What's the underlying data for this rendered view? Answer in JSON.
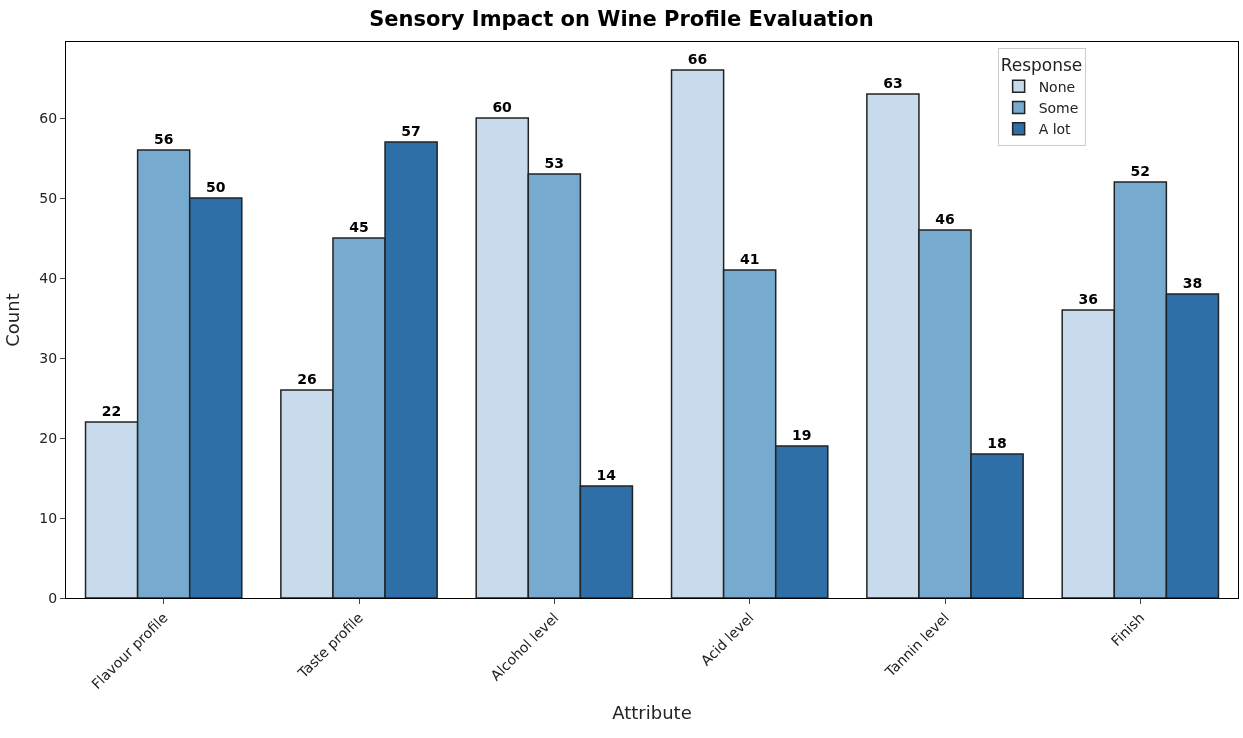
{
  "chart_data": {
    "type": "bar",
    "title": "Sensory Impact on Wine Profile Evaluation",
    "xlabel": "Attribute",
    "ylabel": "Count",
    "legend_title": "Response",
    "categories": [
      "Flavour profile",
      "Taste profile",
      "Alcohol level",
      "Acid level",
      "Tannin level",
      "Finish"
    ],
    "series": [
      {
        "name": "None",
        "color": "#c8dbed",
        "values": [
          22,
          26,
          60,
          66,
          63,
          36
        ]
      },
      {
        "name": "Some",
        "color": "#77aacf",
        "values": [
          56,
          45,
          53,
          41,
          46,
          52
        ]
      },
      {
        "name": "A lot",
        "color": "#2f6fa8",
        "values": [
          50,
          57,
          14,
          19,
          18,
          38
        ]
      }
    ],
    "ylim": [
      0,
      69.5
    ],
    "yticks": [
      0,
      10,
      20,
      30,
      40,
      50,
      60
    ],
    "data_labels": true,
    "legend": "top right"
  }
}
